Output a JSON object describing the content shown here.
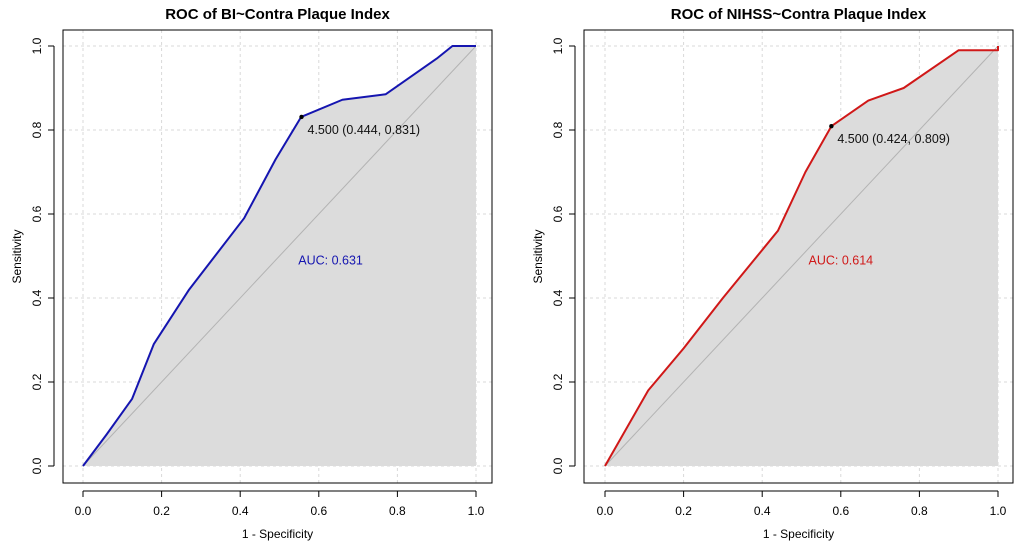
{
  "chart_data": [
    {
      "type": "line",
      "title": "ROC of BI~Contra Plaque Index",
      "xlabel": "1 - Specificity",
      "ylabel": "Sensitivity",
      "xlim": [
        0,
        1
      ],
      "ylim": [
        0,
        1
      ],
      "xticks": [
        "0.0",
        "0.2",
        "0.4",
        "0.6",
        "0.8",
        "1.0"
      ],
      "yticks": [
        "0.0",
        "0.2",
        "0.4",
        "0.6",
        "0.8",
        "1.0"
      ],
      "grid": true,
      "color": "#1515b0",
      "series": [
        {
          "name": "ROC",
          "x": [
            0,
            0.06,
            0.125,
            0.18,
            0.27,
            0.41,
            0.49,
            0.555,
            0.66,
            0.77,
            0.9,
            0.94,
            1.0
          ],
          "y": [
            0,
            0.075,
            0.16,
            0.29,
            0.42,
            0.59,
            0.73,
            0.831,
            0.872,
            0.885,
            0.97,
            1.0,
            1.0
          ]
        }
      ],
      "threshold": {
        "x": 0.556,
        "y": 0.831,
        "label": "4.500 (0.444, 0.831)"
      },
      "auc": {
        "value": 0.631,
        "label": "AUC: 0.631",
        "x": 0.63,
        "y": 0.48
      }
    },
    {
      "type": "line",
      "title": "ROC of NIHSS~Contra Plaque Index",
      "xlabel": "1 - Specificity",
      "ylabel": "Sensitivity",
      "xlim": [
        0,
        1
      ],
      "ylim": [
        0,
        1
      ],
      "xticks": [
        "0.0",
        "0.2",
        "0.4",
        "0.6",
        "0.8",
        "1.0"
      ],
      "yticks": [
        "0.0",
        "0.2",
        "0.4",
        "0.6",
        "0.8",
        "1.0"
      ],
      "grid": true,
      "color": "#d01818",
      "series": [
        {
          "name": "ROC",
          "x": [
            0,
            0.11,
            0.2,
            0.3,
            0.44,
            0.51,
            0.576,
            0.67,
            0.76,
            0.9,
            1.0,
            1.0
          ],
          "y": [
            0,
            0.18,
            0.28,
            0.4,
            0.56,
            0.7,
            0.809,
            0.87,
            0.9,
            0.99,
            0.99,
            1.0
          ]
        }
      ],
      "threshold": {
        "x": 0.576,
        "y": 0.809,
        "label": "4.500 (0.424, 0.809)"
      },
      "auc": {
        "value": 0.614,
        "label": "AUC: 0.614",
        "x": 0.6,
        "y": 0.48
      }
    }
  ]
}
